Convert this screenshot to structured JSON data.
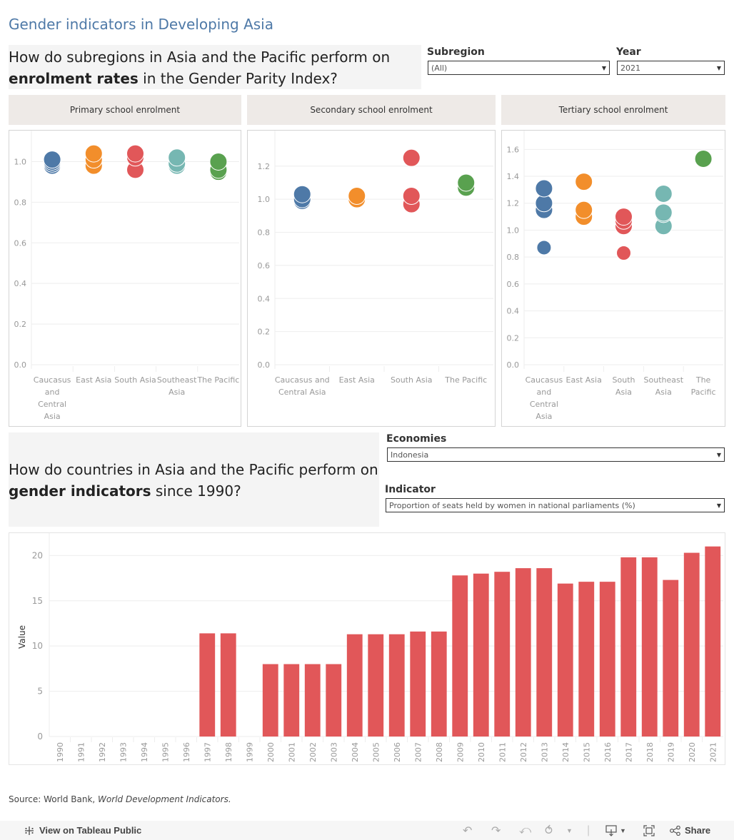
{
  "title": "Gender indicators in Developing Asia",
  "section1": {
    "question_pre": "How do subregions in Asia and the Pacific perform on",
    "question_bold": "enrolment rates",
    "question_post": " in the Gender Parity Index?",
    "subregion_filter": {
      "label": "Subregion",
      "value": "(All)"
    },
    "year_filter": {
      "label": "Year",
      "value": "2021"
    }
  },
  "section2": {
    "question_pre": " How do countries in Asia and the Pacific perform on",
    "question_bold": "gender indicators",
    "question_post": " since 1990?",
    "economies_filter": {
      "label": "Economies",
      "value": "Indonesia"
    },
    "indicator_filter": {
      "label": "Indicator",
      "value": "Proportion of seats held by women in national parliaments (%)"
    }
  },
  "colors": {
    "Caucasus and Central Asia": "#4e79a7",
    "East Asia": "#f28e2b",
    "South Asia": "#e15759",
    "Southeast Asia": "#76b7b2",
    "The Pacific": "#59a14f",
    "bar": "#e15759",
    "title": "#4e79a7"
  },
  "chart_data": [
    {
      "type": "scatter",
      "title": "Primary school enrolment",
      "categories": [
        "Caucasus and Central Asia",
        "East Asia",
        "South Asia",
        "Southeast Asia",
        "The Pacific"
      ],
      "category_labels": [
        [
          "Caucasus",
          "and",
          "Central",
          "Asia"
        ],
        [
          "East Asia"
        ],
        [
          "South Asia"
        ],
        [
          "Southeast",
          "Asia"
        ],
        [
          "The Pacific"
        ]
      ],
      "yticks": [
        "0.0",
        "0.2",
        "0.4",
        "0.6",
        "0.8",
        "1.0"
      ],
      "ylim": [
        0,
        1.1
      ],
      "points": [
        {
          "category": "Caucasus and Central Asia",
          "values": [
            1.01,
            1.0,
            0.99,
            0.98
          ]
        },
        {
          "category": "East Asia",
          "values": [
            1.04,
            1.01,
            0.98
          ]
        },
        {
          "category": "South Asia",
          "values": [
            1.04,
            1.02,
            0.96
          ]
        },
        {
          "category": "Southeast Asia",
          "values": [
            1.02,
            0.99,
            0.98
          ]
        },
        {
          "category": "The Pacific",
          "values": [
            1.0,
            0.96,
            0.95
          ]
        }
      ]
    },
    {
      "type": "scatter",
      "title": "Secondary school enrolment",
      "categories": [
        "Caucasus and Central Asia",
        "East Asia",
        "South Asia",
        "The Pacific"
      ],
      "category_labels": [
        [
          "Caucasus and",
          "Central Asia"
        ],
        [
          "East Asia"
        ],
        [
          "South Asia"
        ],
        [
          "The Pacific"
        ]
      ],
      "yticks": [
        "0.0",
        "0.2",
        "0.4",
        "0.6",
        "0.8",
        "1.0",
        "1.2"
      ],
      "ylim": [
        0,
        1.35
      ],
      "points": [
        {
          "category": "Caucasus and Central Asia",
          "values": [
            1.03,
            1.0,
            0.99
          ]
        },
        {
          "category": "East Asia",
          "values": [
            1.02,
            1.0
          ]
        },
        {
          "category": "South Asia",
          "values": [
            1.25,
            1.02,
            0.97
          ]
        },
        {
          "category": "The Pacific",
          "values": [
            1.1,
            1.07
          ]
        }
      ]
    },
    {
      "type": "scatter",
      "title": "Tertiary school enrolment",
      "categories": [
        "Caucasus and Central Asia",
        "East Asia",
        "South Asia",
        "Southeast Asia",
        "The Pacific"
      ],
      "category_labels": [
        [
          "Caucasus",
          "and",
          "Central",
          "Asia"
        ],
        [
          "East Asia"
        ],
        [
          "South",
          "Asia"
        ],
        [
          "Southeast",
          "Asia"
        ],
        [
          "The",
          "Pacific"
        ]
      ],
      "yticks": [
        "0.0",
        "0.2",
        "0.4",
        "0.6",
        "0.8",
        "1.0",
        "1.2",
        "1.4",
        "1.6"
      ],
      "ylim": [
        0,
        1.66
      ],
      "points": [
        {
          "category": "Caucasus and Central Asia",
          "values": [
            1.31,
            1.2,
            1.15,
            0.87
          ]
        },
        {
          "category": "East Asia",
          "values": [
            1.36,
            1.15,
            1.1
          ]
        },
        {
          "category": "South Asia",
          "values": [
            1.1,
            1.07,
            1.03,
            0.83
          ]
        },
        {
          "category": "Southeast Asia",
          "values": [
            1.27,
            1.13,
            1.12,
            1.03
          ]
        },
        {
          "category": "The Pacific",
          "values": [
            1.53
          ]
        }
      ]
    },
    {
      "type": "bar",
      "title": "",
      "xlabel": "",
      "ylabel": "Value",
      "ylim": [
        0,
        22
      ],
      "yticks": [
        "0",
        "5",
        "10",
        "15",
        "20"
      ],
      "categories": [
        "1990",
        "1991",
        "1992",
        "1993",
        "1994",
        "1995",
        "1996",
        "1997",
        "1998",
        "1999",
        "2000",
        "2001",
        "2002",
        "2003",
        "2004",
        "2005",
        "2006",
        "2007",
        "2008",
        "2009",
        "2010",
        "2011",
        "2012",
        "2013",
        "2014",
        "2015",
        "2016",
        "2017",
        "2018",
        "2019",
        "2020",
        "2021"
      ],
      "values": [
        null,
        null,
        null,
        null,
        null,
        null,
        null,
        11.4,
        11.4,
        null,
        8.0,
        8.0,
        8.0,
        8.0,
        11.3,
        11.3,
        11.3,
        11.6,
        11.6,
        17.8,
        18.0,
        18.2,
        18.6,
        18.6,
        16.9,
        17.1,
        17.1,
        19.8,
        19.8,
        17.3,
        20.3,
        21.0
      ]
    }
  ],
  "source": {
    "prefix": "Source: World Bank, ",
    "italic": "World Development Indicators."
  },
  "footer": {
    "view_label": "View on Tableau Public",
    "share_label": "Share"
  }
}
